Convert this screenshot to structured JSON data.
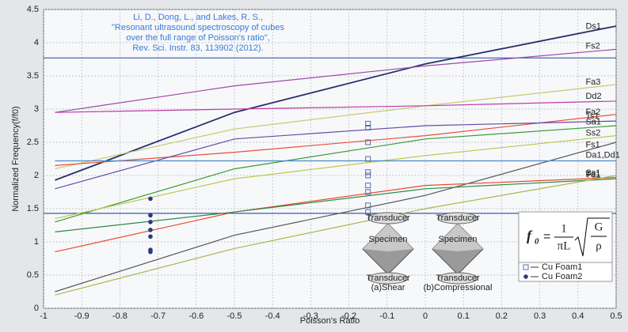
{
  "chart_data": {
    "type": "line",
    "xlabel": "Poisson's Ratio",
    "ylabel": "Normalized Frequency(f/f0)",
    "xlim": [
      -1,
      0.5
    ],
    "ylim": [
      0,
      4.5
    ],
    "xticks": [
      -1,
      -0.9,
      -0.8,
      -0.7,
      -0.6,
      -0.5,
      -0.4,
      -0.3,
      -0.2,
      -0.1,
      0,
      0.1,
      0.2,
      0.3,
      0.4,
      0.5
    ],
    "yticks": [
      0,
      0.5,
      1,
      1.5,
      2,
      2.5,
      3,
      3.5,
      4,
      4.5
    ],
    "grid": true,
    "x": [
      -0.97,
      -0.5,
      0,
      0.5
    ],
    "series": [
      {
        "name": "Ds1",
        "color": "#2a2f6e",
        "values": [
          1.93,
          2.95,
          3.68,
          4.25
        ]
      },
      {
        "name": "Fs2",
        "color": "#9a4aa8",
        "values": [
          2.95,
          3.35,
          3.65,
          3.9
        ]
      },
      {
        "name": "Fa3",
        "color": "#c9c86a",
        "values": [
          2.1,
          2.7,
          3.05,
          3.37
        ]
      },
      {
        "name": "Dd2",
        "color": "#c03aa8",
        "values": [
          2.95,
          3.0,
          3.05,
          3.12
        ]
      },
      {
        "name": "Fa2",
        "color": "#e8503a",
        "values": [
          2.15,
          2.35,
          2.6,
          2.92
        ]
      },
      {
        "name": "Ts1",
        "color": "#6a4aa8",
        "values": [
          1.8,
          2.55,
          2.75,
          2.82
        ]
      },
      {
        "name": "Sa1",
        "color": "#3a9a3a",
        "values": [
          1.3,
          2.1,
          2.55,
          2.75
        ]
      },
      {
        "name": "Ss2",
        "color": "#b8c84a",
        "values": [
          1.35,
          1.95,
          2.3,
          2.6
        ]
      },
      {
        "name": "Fs1",
        "color": "#555555",
        "values": [
          0.25,
          1.1,
          1.7,
          2.5
        ]
      },
      {
        "name": "Ss1",
        "color": "#e84a2a",
        "values": [
          0.85,
          1.45,
          1.85,
          1.97
        ]
      },
      {
        "name": "Fa1",
        "color": "#2a8a4a",
        "values": [
          1.15,
          1.45,
          1.8,
          1.95
        ]
      },
      {
        "name": "Td1",
        "color": "#a8b84a",
        "values": [
          0.2,
          0.9,
          1.5,
          2.0
        ]
      },
      {
        "name": "Da1,Dd1",
        "color": "#4a8ac8",
        "values": [
          2.22,
          2.22,
          2.22,
          2.22
        ]
      }
    ],
    "hlines": [
      {
        "value": 3.77,
        "color": "#3a5aa8"
      },
      {
        "value": 1.43,
        "color": "#3a5aa8"
      }
    ],
    "scatter": [
      {
        "name": "Cu Foam1",
        "marker": "square",
        "color": "#5a6aa8",
        "x": [
          -0.15,
          -0.15,
          -0.15,
          -0.15,
          -0.15,
          -0.15,
          -0.15,
          -0.15,
          -0.15,
          -0.15
        ],
        "y": [
          1.45,
          1.55,
          1.75,
          1.85,
          2.0,
          2.05,
          2.25,
          2.5,
          2.72,
          2.78
        ]
      },
      {
        "name": "Cu Foam2",
        "marker": "circle",
        "color": "#2a3a7a",
        "x": [
          -0.72,
          -0.72,
          -0.72,
          -0.72,
          -0.72,
          -0.72,
          -0.72
        ],
        "y": [
          0.85,
          0.88,
          1.08,
          1.18,
          1.3,
          1.4,
          1.65
        ]
      }
    ],
    "citation": [
      "Li, D., Dong, L., and Lakes, R. S.,",
      "\"Resonant ultrasound spectroscopy of cubes",
      "over the full range of Poisson's ratio\",",
      "Rev. Sci. Instr. 83, 113902 (2012)."
    ],
    "formula": {
      "lhs": "f",
      "sub": "0",
      "eq": "=",
      "num": "1",
      "den": "πL",
      "rnum": "G",
      "rden": "ρ"
    },
    "diagram": {
      "top": "Transducer",
      "specimen": "Specimen",
      "bottom": "Transducer",
      "shear": "(a)Shear",
      "compressional": "(b)Compressional"
    }
  }
}
